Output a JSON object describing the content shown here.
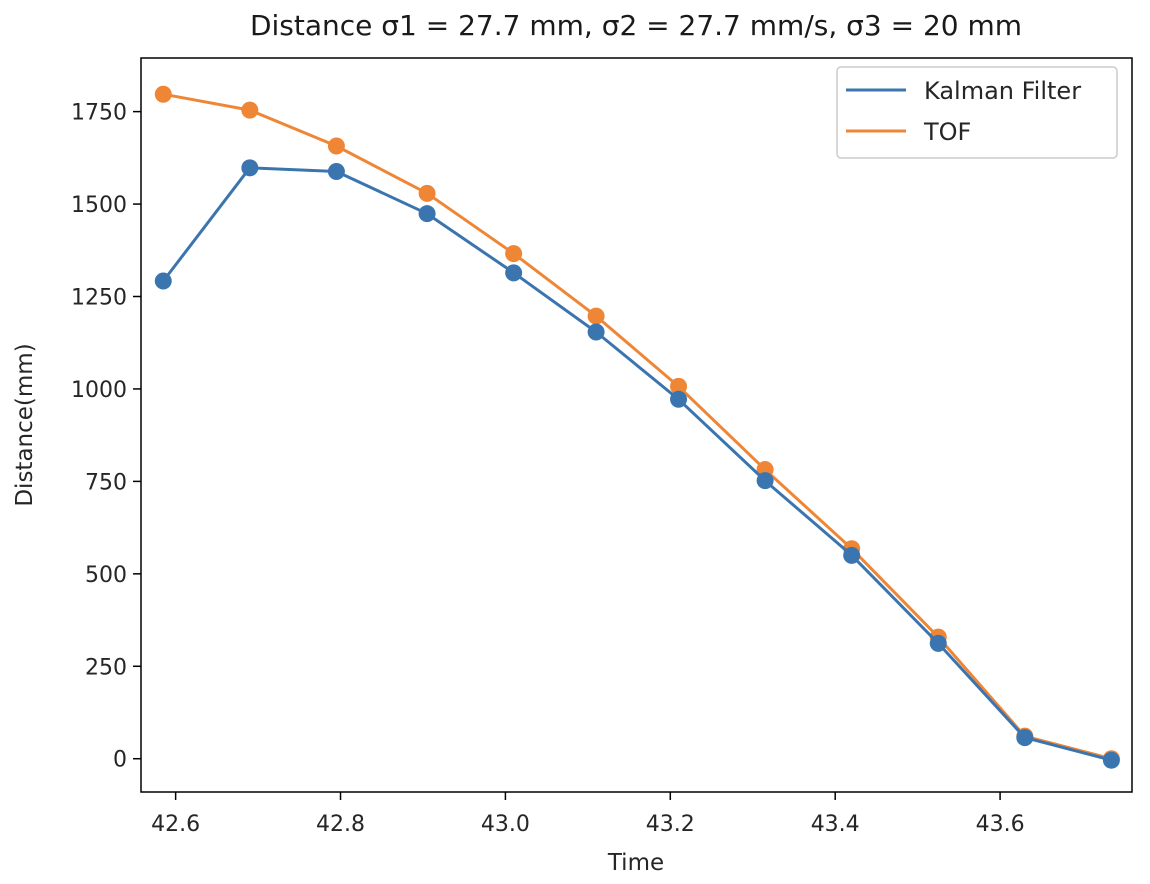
{
  "chart_data": {
    "type": "line",
    "title": "Distance σ1 = 27.7 mm, σ2 = 27.7 mm/s, σ3 = 20 mm",
    "xlabel": "Time",
    "ylabel": "Distance(mm)",
    "xlim": [
      42.558,
      43.76
    ],
    "ylim": [
      -90,
      1895
    ],
    "xticks": [
      42.6,
      42.8,
      43.0,
      43.2,
      43.4,
      43.6
    ],
    "xtick_labels": [
      "42.6",
      "42.8",
      "43.0",
      "43.2",
      "43.4",
      "43.6"
    ],
    "yticks": [
      0,
      250,
      500,
      750,
      1000,
      1250,
      1500,
      1750
    ],
    "ytick_labels": [
      "0",
      "250",
      "500",
      "750",
      "1000",
      "1250",
      "1500",
      "1750"
    ],
    "grid": false,
    "legend_position": "top-right",
    "markers": true,
    "x": [
      42.585,
      42.69,
      42.795,
      42.905,
      43.01,
      43.11,
      43.21,
      43.315,
      43.42,
      43.525,
      43.63,
      43.735
    ],
    "series": [
      {
        "name": "Kalman Filter",
        "color": "#3b75af",
        "values": [
          1292,
          1598,
          1588,
          1474,
          1314,
          1154,
          972,
          752,
          550,
          312,
          57,
          -4
        ]
      },
      {
        "name": "TOF",
        "color": "#ef8636",
        "values": [
          1797,
          1754,
          1657,
          1529,
          1366,
          1197,
          1007,
          782,
          568,
          329,
          61,
          0
        ]
      }
    ]
  }
}
